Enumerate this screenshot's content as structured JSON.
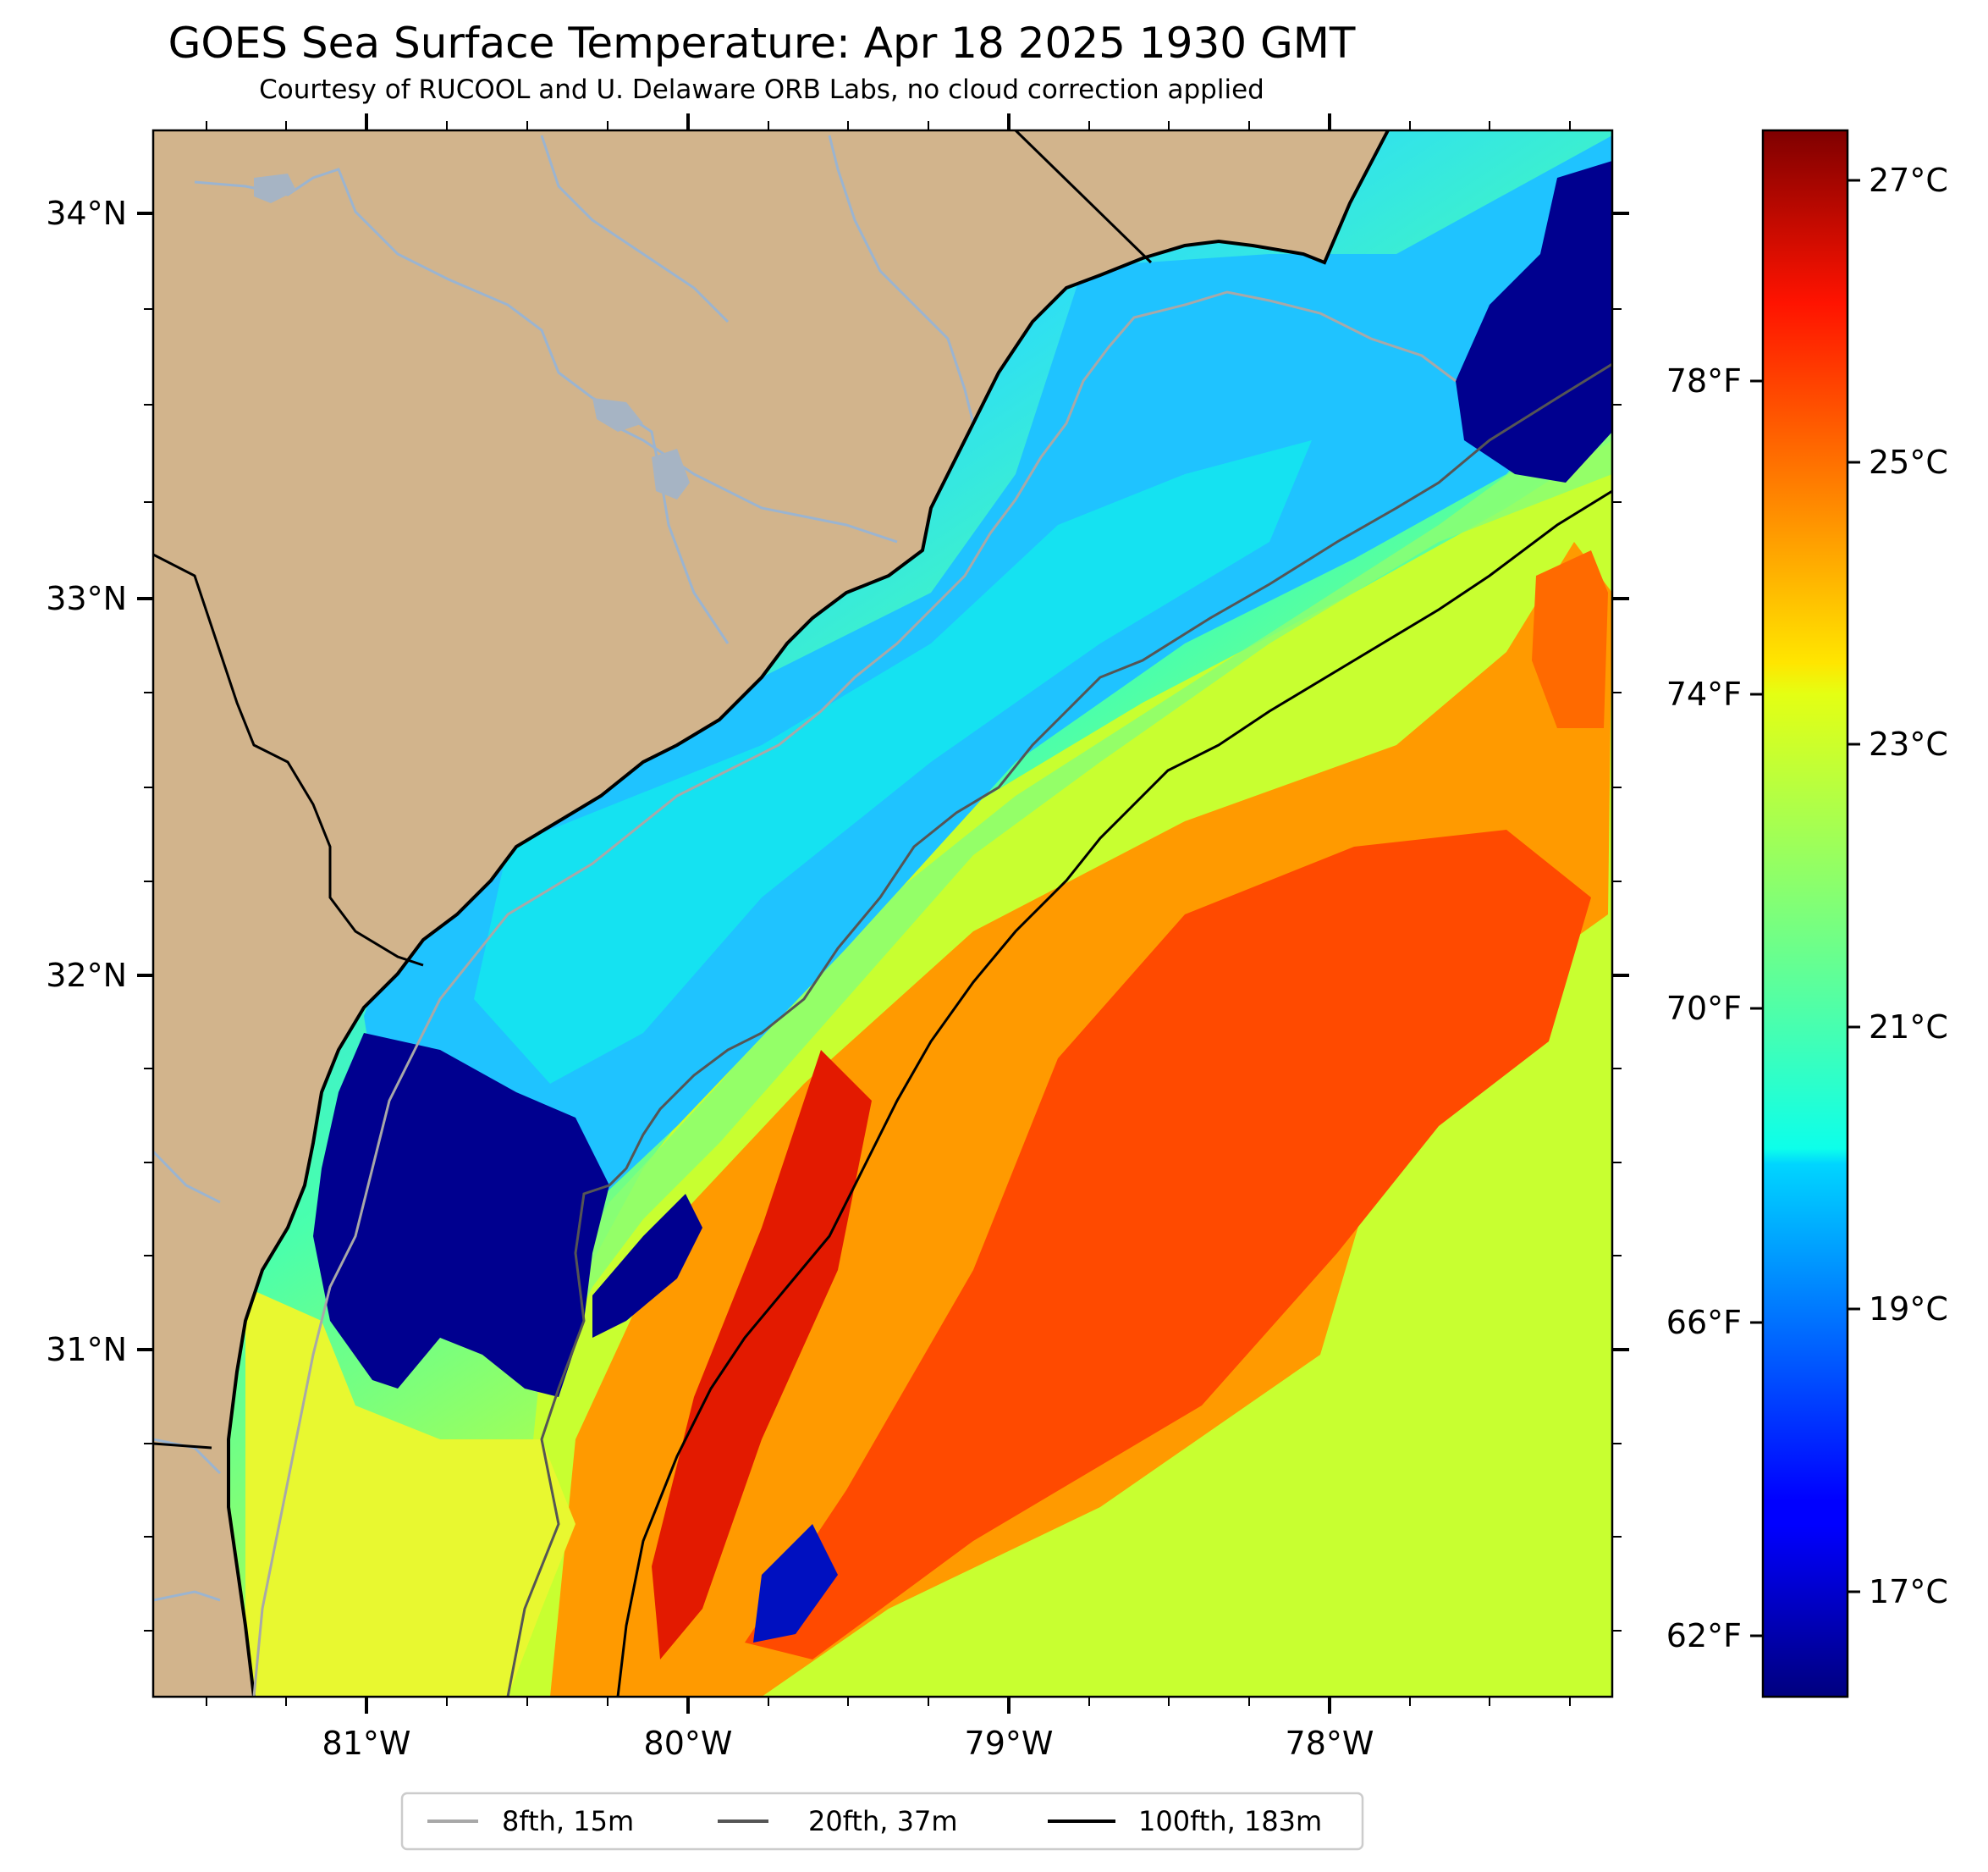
{
  "map": {
    "title": "GOES Sea Surface Temperature: Apr 18 2025 1930 GMT",
    "subtitle": "Courtesy of RUCOOL and U. Delaware ORB Labs, no cloud correction applied",
    "extent": {
      "lon_min": -81.67,
      "lon_max": -77.12,
      "lat_min": 30.11,
      "lat_max": 34.22
    },
    "lat_ticks": [
      {
        "value": 34,
        "label": "34°N"
      },
      {
        "value": 33,
        "label": "33°N"
      },
      {
        "value": 32,
        "label": "32°N"
      },
      {
        "value": 31,
        "label": "31°N"
      }
    ],
    "lon_ticks": [
      {
        "value": -81,
        "label": "81°W"
      },
      {
        "value": -80,
        "label": "80°W"
      },
      {
        "value": -79,
        "label": "79°W"
      },
      {
        "value": -78,
        "label": "78°W"
      }
    ],
    "colors": {
      "land": "#D2B48C",
      "rivers": "#9BB4D0",
      "coast": "#000000"
    }
  },
  "colorbar": {
    "range_c": [
      16.3,
      27.4
    ],
    "celsius_ticks": [
      {
        "value": 27,
        "label": "27°C"
      },
      {
        "value": 25,
        "label": "25°C"
      },
      {
        "value": 23,
        "label": "23°C"
      },
      {
        "value": 21,
        "label": "21°C"
      },
      {
        "value": 19,
        "label": "19°C"
      },
      {
        "value": 17,
        "label": "17°C"
      }
    ],
    "fahrenheit_ticks": [
      {
        "value": 78,
        "label": "78°F"
      },
      {
        "value": 74,
        "label": "74°F"
      },
      {
        "value": 70,
        "label": "70°F"
      },
      {
        "value": 66,
        "label": "66°F"
      },
      {
        "value": 62,
        "label": "62°F"
      }
    ],
    "colormap": "jet"
  },
  "legend": {
    "items": [
      {
        "label": "8fth, 15m",
        "color": "#A8A8A8"
      },
      {
        "label": "20fth, 37m",
        "color": "#555555"
      },
      {
        "label": "100fth, 183m",
        "color": "#000000"
      }
    ]
  }
}
